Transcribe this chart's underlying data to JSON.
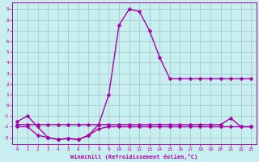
{
  "xlabel": "Windchill (Refroidissement éolien,°C)",
  "bg_color": "#c8eef0",
  "grid_color": "#9ecece",
  "line_color": "#aa00aa",
  "x_ticks": [
    0,
    1,
    2,
    3,
    4,
    5,
    6,
    7,
    8,
    9,
    10,
    11,
    12,
    13,
    14,
    15,
    16,
    17,
    18,
    19,
    20,
    21,
    22,
    23
  ],
  "y_ticks": [
    -3,
    -2,
    -1,
    0,
    1,
    2,
    3,
    4,
    5,
    6,
    7,
    8,
    9
  ],
  "ylim": [
    -3.6,
    9.6
  ],
  "xlim": [
    -0.5,
    23.5
  ],
  "series": [
    {
      "name": "main_curve",
      "x": [
        0,
        1,
        2,
        3,
        4,
        5,
        6,
        7,
        8,
        9,
        10,
        11,
        12,
        13,
        14,
        15,
        16,
        17,
        18,
        19,
        20,
        21,
        22,
        23
      ],
      "y": [
        -1.5,
        -1.0,
        -2.0,
        -3.0,
        -3.2,
        -3.1,
        -3.2,
        -2.8,
        -1.8,
        1.0,
        7.5,
        9.0,
        8.8,
        7.0,
        4.5,
        2.5,
        2.5,
        2.5,
        2.5,
        2.5,
        2.5,
        2.5,
        2.5,
        2.5
      ],
      "color": "#aa00aa",
      "linewidth": 1.0,
      "marker": "D",
      "markersize": 2.5
    },
    {
      "name": "flat_upper",
      "x": [
        0,
        1,
        2,
        3,
        4,
        5,
        6,
        7,
        8,
        9,
        10,
        11,
        12,
        13,
        14,
        15,
        16,
        17,
        18,
        19,
        20,
        21,
        22,
        23
      ],
      "y": [
        -1.8,
        -1.8,
        -1.8,
        -1.8,
        -1.8,
        -1.8,
        -1.8,
        -1.8,
        -1.8,
        -1.8,
        -1.8,
        -1.8,
        -1.8,
        -1.8,
        -1.8,
        -1.8,
        -1.8,
        -1.8,
        -1.8,
        -1.8,
        -1.8,
        -1.2,
        -2.0,
        -2.0
      ],
      "color": "#aa00aa",
      "linewidth": 1.0,
      "marker": "D",
      "markersize": 2.5
    },
    {
      "name": "bottom_curve",
      "x": [
        0,
        1,
        2,
        3,
        4,
        5,
        6,
        7,
        8,
        9,
        10,
        11,
        12,
        13,
        14,
        15,
        16,
        17,
        18,
        19,
        20,
        21,
        22,
        23
      ],
      "y": [
        -2.0,
        -2.0,
        -2.8,
        -3.0,
        -3.2,
        -3.1,
        -3.2,
        -2.8,
        -2.2,
        -2.0,
        -2.0,
        -2.0,
        -2.0,
        -2.0,
        -2.0,
        -2.0,
        -2.0,
        -2.0,
        -2.0,
        -2.0,
        -2.0,
        -2.0,
        -2.0,
        -2.0
      ],
      "color": "#aa00aa",
      "linewidth": 1.0,
      "marker": "D",
      "markersize": 2.5
    }
  ]
}
